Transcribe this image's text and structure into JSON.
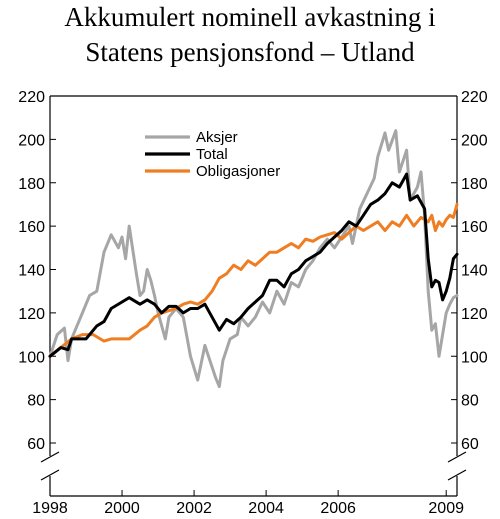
{
  "chart_data": {
    "type": "line",
    "title": [
      "Akkumulert nominell avkastning i",
      "Statens pensjonsfond – Utland"
    ],
    "xlabel": "",
    "ylabel": "",
    "xlim": [
      1998.0,
      2009.3
    ],
    "ylim": [
      60,
      220
    ],
    "y_axis_break": true,
    "y_ticks": [
      60,
      80,
      100,
      120,
      140,
      160,
      180,
      200,
      220
    ],
    "x_ticks": [
      1998,
      2000,
      2002,
      2004,
      2006,
      2009
    ],
    "x_tick_labels": [
      "1998",
      "2000",
      "2002",
      "2004",
      "2006",
      "2009"
    ],
    "grid": false,
    "legend_position": "top-left",
    "series": [
      {
        "name": "Aksjer",
        "color": "#a6a6a6",
        "x": [
          1998.0,
          1998.2,
          1998.4,
          1998.5,
          1998.6,
          1998.7,
          1998.9,
          1999.1,
          1999.3,
          1999.5,
          1999.7,
          1999.9,
          2000.0,
          2000.1,
          2000.2,
          2000.4,
          2000.5,
          2000.6,
          2000.7,
          2000.8,
          2000.9,
          2001.0,
          2001.2,
          2001.3,
          2001.5,
          2001.6,
          2001.7,
          2001.9,
          2002.1,
          2002.3,
          2002.4,
          2002.5,
          2002.6,
          2002.7,
          2002.8,
          2003.0,
          2003.2,
          2003.3,
          2003.5,
          2003.7,
          2003.9,
          2004.1,
          2004.3,
          2004.5,
          2004.7,
          2004.9,
          2005.1,
          2005.3,
          2005.5,
          2005.7,
          2005.9,
          2006.1,
          2006.3,
          2006.4,
          2006.6,
          2006.8,
          2007.0,
          2007.1,
          2007.3,
          2007.4,
          2007.6,
          2007.7,
          2007.9,
          2008.0,
          2008.2,
          2008.3,
          2008.4,
          2008.5,
          2008.6,
          2008.7,
          2008.8,
          2008.9,
          2009.0,
          2009.1,
          2009.2,
          2009.3
        ],
        "values": [
          100,
          110,
          113,
          98,
          108,
          112,
          120,
          128,
          130,
          148,
          156,
          150,
          155,
          145,
          160,
          138,
          128,
          130,
          140,
          135,
          128,
          120,
          108,
          118,
          122,
          120,
          118,
          100,
          89,
          105,
          100,
          95,
          90,
          86,
          98,
          108,
          110,
          118,
          114,
          118,
          125,
          120,
          130,
          124,
          134,
          132,
          140,
          144,
          150,
          154,
          150,
          155,
          160,
          152,
          168,
          175,
          182,
          192,
          203,
          195,
          204,
          185,
          195,
          172,
          178,
          185,
          165,
          130,
          112,
          115,
          100,
          110,
          120,
          124,
          127,
          128
        ]
      },
      {
        "name": "Total",
        "color": "#000000",
        "x": [
          1998.0,
          1998.3,
          1998.5,
          1998.6,
          1998.8,
          1999.0,
          1999.3,
          1999.5,
          1999.7,
          2000.0,
          2000.2,
          2000.5,
          2000.7,
          2000.9,
          2001.1,
          2001.3,
          2001.5,
          2001.7,
          2001.9,
          2002.1,
          2002.3,
          2002.5,
          2002.7,
          2002.9,
          2003.1,
          2003.3,
          2003.5,
          2003.7,
          2003.9,
          2004.1,
          2004.3,
          2004.5,
          2004.7,
          2004.9,
          2005.1,
          2005.3,
          2005.5,
          2005.7,
          2005.9,
          2006.1,
          2006.3,
          2006.5,
          2006.7,
          2006.9,
          2007.1,
          2007.3,
          2007.5,
          2007.7,
          2007.9,
          2008.0,
          2008.2,
          2008.4,
          2008.5,
          2008.6,
          2008.7,
          2008.8,
          2008.9,
          2009.0,
          2009.1,
          2009.2,
          2009.3
        ],
        "values": [
          100,
          104,
          103,
          108,
          108,
          108,
          114,
          116,
          122,
          125,
          127,
          124,
          126,
          124,
          120,
          123,
          123,
          120,
          122,
          122,
          124,
          118,
          112,
          117,
          115,
          118,
          122,
          125,
          128,
          135,
          135,
          132,
          138,
          140,
          144,
          146,
          148,
          152,
          155,
          158,
          162,
          160,
          165,
          170,
          172,
          175,
          180,
          178,
          184,
          172,
          174,
          168,
          145,
          132,
          135,
          134,
          126,
          130,
          136,
          145,
          147
        ]
      },
      {
        "name": "Obligasjoner",
        "color": "#ef7d22",
        "x": [
          1998.0,
          1998.3,
          1998.6,
          1998.9,
          1999.2,
          1999.5,
          1999.7,
          1999.9,
          2000.2,
          2000.5,
          2000.7,
          2000.9,
          2001.1,
          2001.3,
          2001.5,
          2001.7,
          2001.9,
          2002.1,
          2002.3,
          2002.5,
          2002.7,
          2002.9,
          2003.1,
          2003.3,
          2003.5,
          2003.7,
          2003.9,
          2004.1,
          2004.3,
          2004.5,
          2004.7,
          2004.9,
          2005.1,
          2005.3,
          2005.5,
          2005.7,
          2005.9,
          2006.1,
          2006.3,
          2006.5,
          2006.7,
          2006.9,
          2007.1,
          2007.3,
          2007.5,
          2007.7,
          2007.9,
          2008.1,
          2008.3,
          2008.5,
          2008.6,
          2008.7,
          2008.8,
          2008.9,
          2009.0,
          2009.1,
          2009.2,
          2009.3
        ],
        "values": [
          100,
          104,
          108,
          110,
          110,
          107,
          108,
          108,
          108,
          112,
          114,
          118,
          120,
          121,
          122,
          124,
          125,
          124,
          126,
          130,
          136,
          138,
          142,
          140,
          144,
          142,
          145,
          148,
          148,
          150,
          152,
          150,
          154,
          153,
          155,
          156,
          157,
          154,
          157,
          160,
          158,
          160,
          162,
          158,
          162,
          160,
          165,
          160,
          164,
          162,
          165,
          158,
          162,
          160,
          163,
          165,
          164,
          170
        ]
      }
    ]
  }
}
